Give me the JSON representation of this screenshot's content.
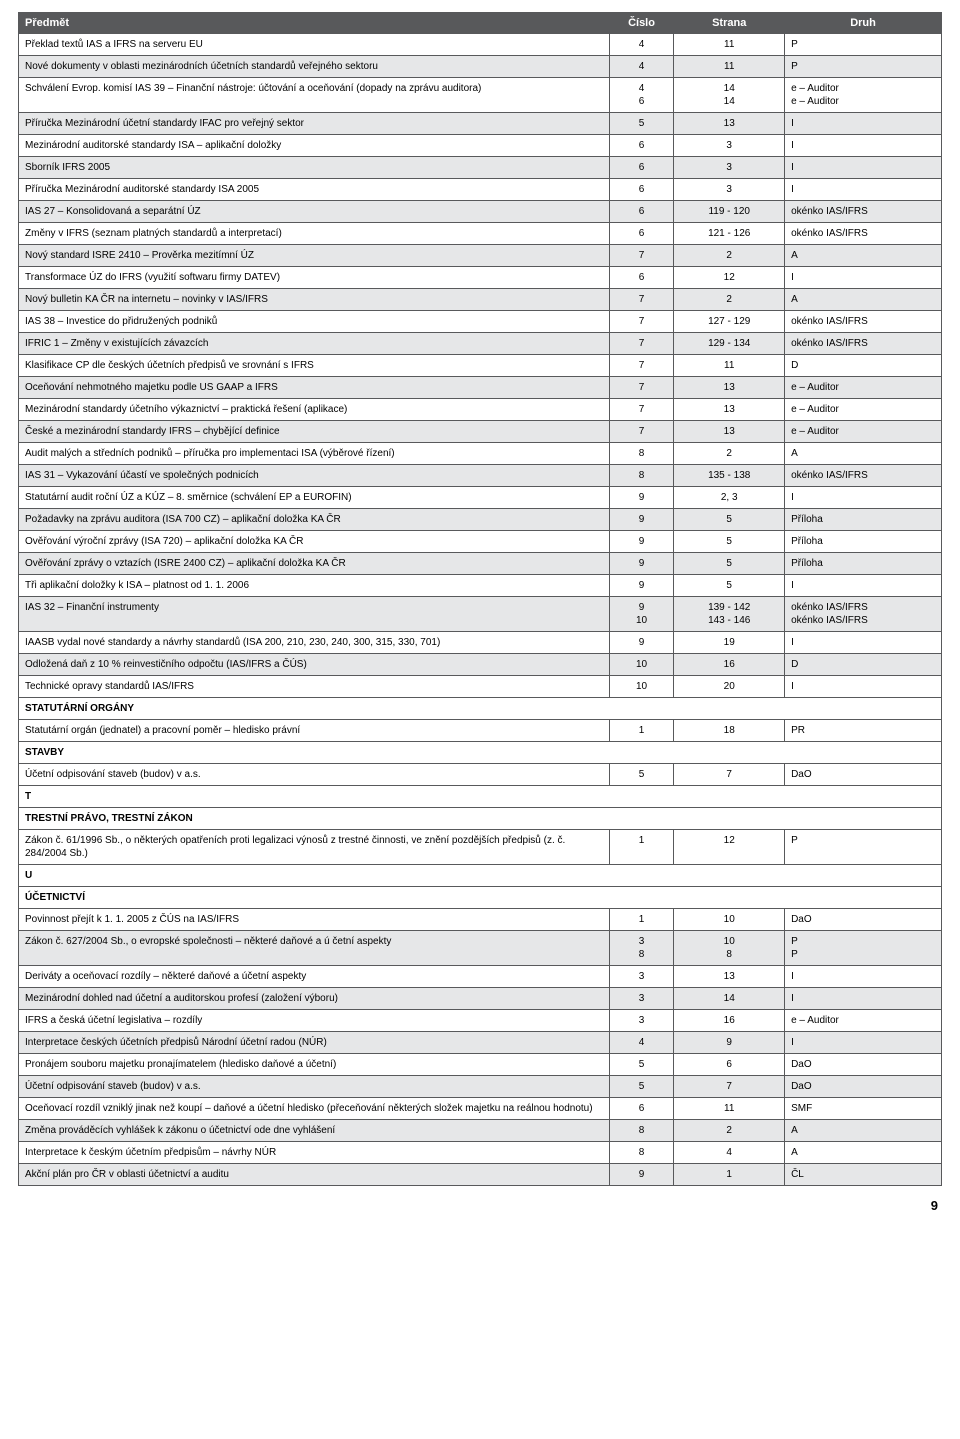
{
  "header": {
    "predmet": "Předmět",
    "cislo": "Číslo",
    "strana": "Strana",
    "druh": "Druh"
  },
  "pagenum": "9",
  "rows": [
    {
      "predmet": "Překlad textů IAS a IFRS na serveru EU",
      "cislo": "4",
      "strana": "11",
      "druh": "P",
      "shade": false
    },
    {
      "predmet": "Nové dokumenty v oblasti mezinárodních účetních standardů veřejného sektoru",
      "cislo": "4",
      "strana": "11",
      "druh": "P",
      "shade": true
    },
    {
      "predmet": "Schválení Evrop. komisí IAS 39 – Finanční nástroje: účtování a oceňování (dopady na zprávu auditora)",
      "cislo": "4\n6",
      "strana": "14\n14",
      "druh": "e – Auditor\ne – Auditor",
      "shade": false
    },
    {
      "predmet": "Příručka Mezinárodní účetní standardy IFAC pro veřejný sektor",
      "cislo": "5",
      "strana": "13",
      "druh": "I",
      "shade": true
    },
    {
      "predmet": "Mezinárodní auditorské standardy ISA – aplikační doložky",
      "cislo": "6",
      "strana": "3",
      "druh": "I",
      "shade": false
    },
    {
      "predmet": "Sborník IFRS 2005",
      "cislo": "6",
      "strana": "3",
      "druh": "I",
      "shade": true
    },
    {
      "predmet": "Příručka Mezinárodní auditorské standardy ISA 2005",
      "cislo": "6",
      "strana": "3",
      "druh": "I",
      "shade": false
    },
    {
      "predmet": "IAS 27 – Konsolidovaná a separátní ÚZ",
      "cislo": "6",
      "strana": "119 - 120",
      "druh": "okénko IAS/IFRS",
      "shade": true
    },
    {
      "predmet": "Změny v IFRS (seznam platných standardů a interpretací)",
      "cislo": "6",
      "strana": "121 - 126",
      "druh": "okénko IAS/IFRS",
      "shade": false
    },
    {
      "predmet": "Nový standard ISRE 2410 – Prověrka mezitímní ÚZ",
      "cislo": "7",
      "strana": "2",
      "druh": "A",
      "shade": true
    },
    {
      "predmet": "Transformace ÚZ do IFRS (využití softwaru firmy DATEV)",
      "cislo": "6",
      "strana": "12",
      "druh": "I",
      "shade": false
    },
    {
      "predmet": "Nový bulletin KA ČR na internetu – novinky v IAS/IFRS",
      "cislo": "7",
      "strana": "2",
      "druh": "A",
      "shade": true
    },
    {
      "predmet": "IAS 38 – Investice do přidružených podniků",
      "cislo": "7",
      "strana": "127 - 129",
      "druh": "okénko IAS/IFRS",
      "shade": false
    },
    {
      "predmet": "IFRIC 1 – Změny v existujících závazcích",
      "cislo": "7",
      "strana": "129 - 134",
      "druh": "okénko IAS/IFRS",
      "shade": true
    },
    {
      "predmet": "Klasifikace CP dle českých účetních předpisů ve srovnání s IFRS",
      "cislo": "7",
      "strana": "11",
      "druh": "D",
      "shade": false
    },
    {
      "predmet": "Oceňování nehmotného majetku podle US GAAP a IFRS",
      "cislo": "7",
      "strana": "13",
      "druh": "e – Auditor",
      "shade": true
    },
    {
      "predmet": "Mezinárodní standardy účetního výkaznictví – praktická řešení (aplikace)",
      "cislo": "7",
      "strana": "13",
      "druh": "e – Auditor",
      "shade": false
    },
    {
      "predmet": "České a mezinárodní standardy IFRS – chybějící definice",
      "cislo": "7",
      "strana": "13",
      "druh": "e – Auditor",
      "shade": true
    },
    {
      "predmet": "Audit malých a středních podniků – příručka pro implementaci ISA (výběrové řízení)",
      "cislo": "8",
      "strana": "2",
      "druh": "A",
      "shade": false
    },
    {
      "predmet": "IAS 31 – Vykazování účastí ve společných podnicích",
      "cislo": "8",
      "strana": "135 - 138",
      "druh": "okénko IAS/IFRS",
      "shade": true
    },
    {
      "predmet": "Statutární audit roční ÚZ a KÚZ – 8. směrnice (schválení EP a EUROFIN)",
      "cislo": "9",
      "strana": "2, 3",
      "druh": "I",
      "shade": false
    },
    {
      "predmet": "Požadavky na zprávu auditora (ISA 700 CZ) – aplikační doložka KA ČR",
      "cislo": "9",
      "strana": "5",
      "druh": "Příloha",
      "shade": true
    },
    {
      "predmet": "Ověřování výroční zprávy (ISA 720) – aplikační doložka KA ČR",
      "cislo": "9",
      "strana": "5",
      "druh": "Příloha",
      "shade": false
    },
    {
      "predmet": "Ověřování zprávy o vztazích (ISRE 2400 CZ) – aplikační doložka KA ČR",
      "cislo": "9",
      "strana": "5",
      "druh": "Příloha",
      "shade": true
    },
    {
      "predmet": "Tři aplikační doložky k ISA – platnost od 1. 1. 2006",
      "cislo": "9",
      "strana": "5",
      "druh": "I",
      "shade": false
    },
    {
      "predmet": "IAS 32 – Finanční instrumenty",
      "cislo": "9\n10",
      "strana": "139 - 142\n143 - 146",
      "druh": "okénko IAS/IFRS\nokénko IAS/IFRS",
      "shade": true
    },
    {
      "predmet": "IAASB vydal nové standardy a návrhy standardů (ISA 200, 210, 230, 240, 300, 315, 330, 701)",
      "cislo": "9",
      "strana": "19",
      "druh": "I",
      "shade": false
    },
    {
      "predmet": "Odložená daň z 10 % reinvestičního odpočtu (IAS/IFRS a ČÚS)",
      "cislo": "10",
      "strana": "16",
      "druh": "D",
      "shade": true
    },
    {
      "predmet": "Technické opravy standardů IAS/IFRS",
      "cislo": "10",
      "strana": "20",
      "druh": "I",
      "shade": false
    },
    {
      "section": true,
      "predmet": "STATUTÁRNÍ ORGÁNY"
    },
    {
      "predmet": "Statutární orgán (jednatel) a pracovní poměr – hledisko právní",
      "cislo": "1",
      "strana": "18",
      "druh": "PR",
      "shade": false
    },
    {
      "section": true,
      "predmet": "STAVBY"
    },
    {
      "predmet": "Účetní odpisování staveb (budov) v a.s.",
      "cislo": "5",
      "strana": "7",
      "druh": "DaO",
      "shade": false
    },
    {
      "section": true,
      "predmet": "T"
    },
    {
      "section": true,
      "predmet": "TRESTNÍ PRÁVO, TRESTNÍ ZÁKON"
    },
    {
      "predmet": "Zákon č. 61/1996 Sb., o některých opatřeních proti legalizaci výnosů z trestné činnosti, ve znění pozdějších předpisů (z. č. 284/2004 Sb.)",
      "cislo": "1",
      "strana": "12",
      "druh": "P",
      "shade": false
    },
    {
      "section": true,
      "predmet": "U"
    },
    {
      "section": true,
      "predmet": "ÚČETNICTVÍ"
    },
    {
      "predmet": "Povinnost přejít k 1. 1. 2005 z ČÚS na IAS/IFRS",
      "cislo": "1",
      "strana": "10",
      "druh": "DaO",
      "shade": false
    },
    {
      "predmet": "Zákon č. 627/2004 Sb., o evropské společnosti – některé daňové a ú četní aspekty",
      "cislo": "3\n8",
      "strana": "10\n8",
      "druh": "P\nP",
      "shade": true
    },
    {
      "predmet": "Deriváty a oceňovací rozdíly – některé daňové a účetní aspekty",
      "cislo": "3",
      "strana": "13",
      "druh": "I",
      "shade": false
    },
    {
      "predmet": "Mezinárodní dohled nad účetní a auditorskou profesí (založení výboru)",
      "cislo": "3",
      "strana": "14",
      "druh": "I",
      "shade": true
    },
    {
      "predmet": "IFRS a česká účetní legislativa – rozdíly",
      "cislo": "3",
      "strana": "16",
      "druh": "e – Auditor",
      "shade": false
    },
    {
      "predmet": "Interpretace českých účetních předpisů Národní účetní radou (NÚR)",
      "cislo": "4",
      "strana": "9",
      "druh": "I",
      "shade": true
    },
    {
      "predmet": "Pronájem souboru majetku pronajímatelem (hledisko daňové a účetní)",
      "cislo": "5",
      "strana": "6",
      "druh": "DaO",
      "shade": false
    },
    {
      "predmet": "Účetní odpisování staveb (budov) v a.s.",
      "cislo": "5",
      "strana": "7",
      "druh": "DaO",
      "shade": true
    },
    {
      "predmet": "Oceňovací rozdíl vzniklý jinak než koupí – daňové a účetní hledisko (přeceňování některých složek majetku na reálnou hodnotu)",
      "cislo": "6",
      "strana": "11",
      "druh": "SMF",
      "shade": false
    },
    {
      "predmet": "Změna prováděcích vyhlášek k zákonu o účetnictví ode dne vyhlášení",
      "cislo": "8",
      "strana": "2",
      "druh": "A",
      "shade": true
    },
    {
      "predmet": "Interpretace k českým účetním předpisům – návrhy NÚR",
      "cislo": "8",
      "strana": "4",
      "druh": "A",
      "shade": false
    },
    {
      "predmet": "Akční plán pro ČR v oblasti účetnictví a auditu",
      "cislo": "9",
      "strana": "1",
      "druh": "ČL",
      "shade": true
    }
  ]
}
